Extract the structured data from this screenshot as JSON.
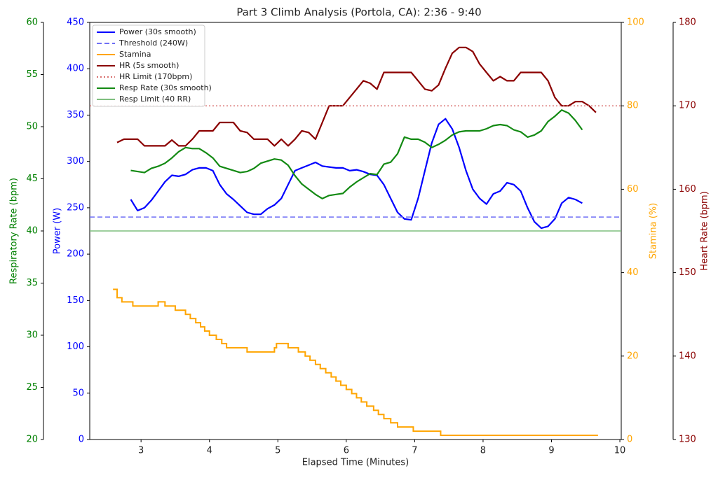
{
  "chart_data": {
    "type": "multi-axis-line",
    "title": "Part 3 Climb Analysis (Portola, CA): 2:36 - 9:40",
    "xlabel": "Elapsed Time (Minutes)",
    "xlim": [
      2.25,
      10.02
    ],
    "xticks": [
      3,
      4,
      5,
      6,
      7,
      8,
      9,
      10
    ],
    "axes": {
      "resp": {
        "label": "Respiratory Rate (bpm)",
        "color": "#008000",
        "lim": [
          20,
          60
        ],
        "ticks": [
          20,
          25,
          30,
          35,
          40,
          45,
          50,
          55,
          60
        ]
      },
      "power": {
        "label": "Power (W)",
        "color": "#0000ff",
        "lim": [
          0,
          450
        ],
        "ticks": [
          0,
          50,
          100,
          150,
          200,
          250,
          300,
          350,
          400,
          450
        ]
      },
      "stamina": {
        "label": "Stamina (%)",
        "color": "#ffa500",
        "lim": [
          0,
          100
        ],
        "ticks": [
          0,
          20,
          40,
          60,
          80,
          100
        ]
      },
      "hr": {
        "label": "Heart Rate (bpm)",
        "color": "#8b0000",
        "lim": [
          130,
          180
        ],
        "ticks": [
          130,
          140,
          150,
          160,
          170,
          180
        ]
      }
    },
    "series": [
      {
        "name": "Power (30s smooth)",
        "color": "#0000ff",
        "axis": "power",
        "style": "solid",
        "x": [
          2.85,
          2.95,
          3.05,
          3.15,
          3.25,
          3.35,
          3.45,
          3.55,
          3.65,
          3.75,
          3.85,
          3.95,
          4.05,
          4.15,
          4.25,
          4.35,
          4.45,
          4.55,
          4.65,
          4.75,
          4.85,
          4.95,
          5.05,
          5.15,
          5.25,
          5.35,
          5.45,
          5.55,
          5.65,
          5.75,
          5.85,
          5.95,
          6.05,
          6.15,
          6.25,
          6.35,
          6.45,
          6.55,
          6.65,
          6.75,
          6.85,
          6.95,
          7.05,
          7.15,
          7.25,
          7.35,
          7.45,
          7.55,
          7.65,
          7.75,
          7.85,
          7.95,
          8.05,
          8.15,
          8.25,
          8.35,
          8.45,
          8.55,
          8.65,
          8.75,
          8.85,
          8.95,
          9.05,
          9.15,
          9.25,
          9.35,
          9.45
        ],
        "values": [
          259,
          247,
          250,
          258,
          268,
          278,
          285,
          284,
          286,
          291,
          293,
          293,
          290,
          275,
          265,
          259,
          252,
          245,
          243,
          243,
          249,
          253,
          260,
          275,
          290,
          293,
          296,
          299,
          295,
          294,
          293,
          293,
          290,
          291,
          289,
          286,
          285,
          275,
          260,
          245,
          238,
          237,
          260,
          290,
          320,
          340,
          346,
          335,
          315,
          290,
          270,
          260,
          254,
          265,
          268,
          277,
          275,
          268,
          250,
          235,
          228,
          230,
          238,
          255,
          261,
          259,
          255
        ]
      },
      {
        "name": "Threshold (240W)",
        "color": "#6f6ff5",
        "axis": "power",
        "style": "dashed",
        "value": 240
      },
      {
        "name": "Stamina",
        "color": "#ffa500",
        "axis": "stamina",
        "style": "steps",
        "x": [
          2.6,
          2.65,
          2.72,
          2.88,
          3.25,
          3.35,
          3.5,
          3.65,
          3.72,
          3.8,
          3.87,
          3.93,
          4.0,
          4.1,
          4.18,
          4.25,
          4.55,
          4.95,
          4.98,
          5.15,
          5.3,
          5.4,
          5.47,
          5.55,
          5.62,
          5.7,
          5.78,
          5.85,
          5.92,
          6.0,
          6.08,
          6.15,
          6.22,
          6.3,
          6.4,
          6.47,
          6.55,
          6.65,
          6.75,
          6.98,
          7.38,
          9.67
        ],
        "values": [
          36,
          34,
          33,
          32,
          33,
          32,
          31,
          30,
          29,
          28,
          27,
          26,
          25,
          24,
          23,
          22,
          21,
          22,
          23,
          22,
          21,
          20,
          19,
          18,
          17,
          16,
          15,
          14,
          13,
          12,
          11,
          10,
          9,
          8,
          7,
          6,
          5,
          4,
          3,
          2,
          1,
          1
        ]
      },
      {
        "name": "HR (5s smooth)",
        "color": "#8b0000",
        "axis": "hr",
        "style": "solid",
        "x": [
          2.65,
          2.75,
          2.85,
          2.95,
          3.05,
          3.15,
          3.25,
          3.35,
          3.45,
          3.55,
          3.65,
          3.75,
          3.85,
          3.95,
          4.05,
          4.15,
          4.25,
          4.35,
          4.45,
          4.55,
          4.65,
          4.75,
          4.85,
          4.95,
          5.05,
          5.15,
          5.25,
          5.35,
          5.45,
          5.55,
          5.65,
          5.75,
          5.85,
          5.95,
          6.05,
          6.15,
          6.25,
          6.35,
          6.45,
          6.55,
          6.65,
          6.75,
          6.85,
          6.95,
          7.05,
          7.15,
          7.25,
          7.35,
          7.45,
          7.55,
          7.65,
          7.75,
          7.85,
          7.95,
          8.05,
          8.15,
          8.25,
          8.35,
          8.45,
          8.55,
          8.65,
          8.75,
          8.85,
          8.95,
          9.05,
          9.15,
          9.25,
          9.35,
          9.45,
          9.55,
          9.65
        ],
        "values": [
          165.6,
          166,
          166,
          166,
          165.2,
          165.2,
          165.2,
          165.2,
          165.9,
          165.2,
          165.2,
          166,
          167,
          167,
          167,
          168,
          168,
          168,
          167,
          166.8,
          166,
          166,
          166,
          165.2,
          166,
          165.2,
          166,
          167,
          166.8,
          166,
          168,
          170,
          170,
          170,
          171,
          172,
          173,
          172.7,
          172,
          174,
          174,
          174,
          174,
          174,
          173,
          172,
          171.8,
          172.5,
          174.5,
          176.3,
          177,
          177,
          176.5,
          175,
          174,
          173,
          173.5,
          173,
          173,
          174,
          174,
          174,
          174,
          173,
          171,
          170,
          170,
          170.5,
          170.5,
          170,
          169.2
        ]
      },
      {
        "name": "HR Limit (170bpm)",
        "color": "#d9706f",
        "axis": "hr",
        "style": "dotted",
        "value": 170
      },
      {
        "name": "Resp Rate (30s smooth)",
        "color": "#138a13",
        "axis": "resp",
        "style": "solid",
        "x": [
          2.85,
          2.95,
          3.05,
          3.15,
          3.25,
          3.35,
          3.45,
          3.55,
          3.65,
          3.75,
          3.85,
          3.95,
          4.05,
          4.15,
          4.25,
          4.35,
          4.45,
          4.55,
          4.65,
          4.75,
          4.85,
          4.95,
          5.05,
          5.15,
          5.25,
          5.35,
          5.45,
          5.55,
          5.65,
          5.75,
          5.85,
          5.95,
          6.05,
          6.15,
          6.25,
          6.35,
          6.45,
          6.55,
          6.65,
          6.75,
          6.85,
          6.95,
          7.05,
          7.15,
          7.25,
          7.35,
          7.45,
          7.55,
          7.65,
          7.75,
          7.85,
          7.95,
          8.05,
          8.15,
          8.25,
          8.35,
          8.45,
          8.55,
          8.65,
          8.75,
          8.85,
          8.95,
          9.05,
          9.15,
          9.25,
          9.35,
          9.45
        ],
        "values": [
          45.8,
          45.7,
          45.6,
          46,
          46.2,
          46.5,
          47,
          47.6,
          48,
          47.9,
          47.9,
          47.5,
          47,
          46.2,
          46,
          45.8,
          45.6,
          45.7,
          46,
          46.5,
          46.7,
          46.9,
          46.8,
          46.3,
          45.3,
          44.5,
          44,
          43.5,
          43.1,
          43.4,
          43.5,
          43.6,
          44.2,
          44.7,
          45.1,
          45.5,
          45.4,
          46.4,
          46.6,
          47.4,
          49,
          48.8,
          48.8,
          48.5,
          48,
          48.3,
          48.7,
          49.2,
          49.5,
          49.6,
          49.6,
          49.6,
          49.8,
          50.1,
          50.2,
          50.1,
          49.7,
          49.5,
          49,
          49.2,
          49.6,
          50.5,
          51,
          51.6,
          51.3,
          50.6,
          49.7
        ]
      },
      {
        "name": "Resp Limit (40 RR)",
        "color": "#7fbf7f",
        "axis": "resp",
        "style": "solid",
        "value": 40
      }
    ]
  }
}
